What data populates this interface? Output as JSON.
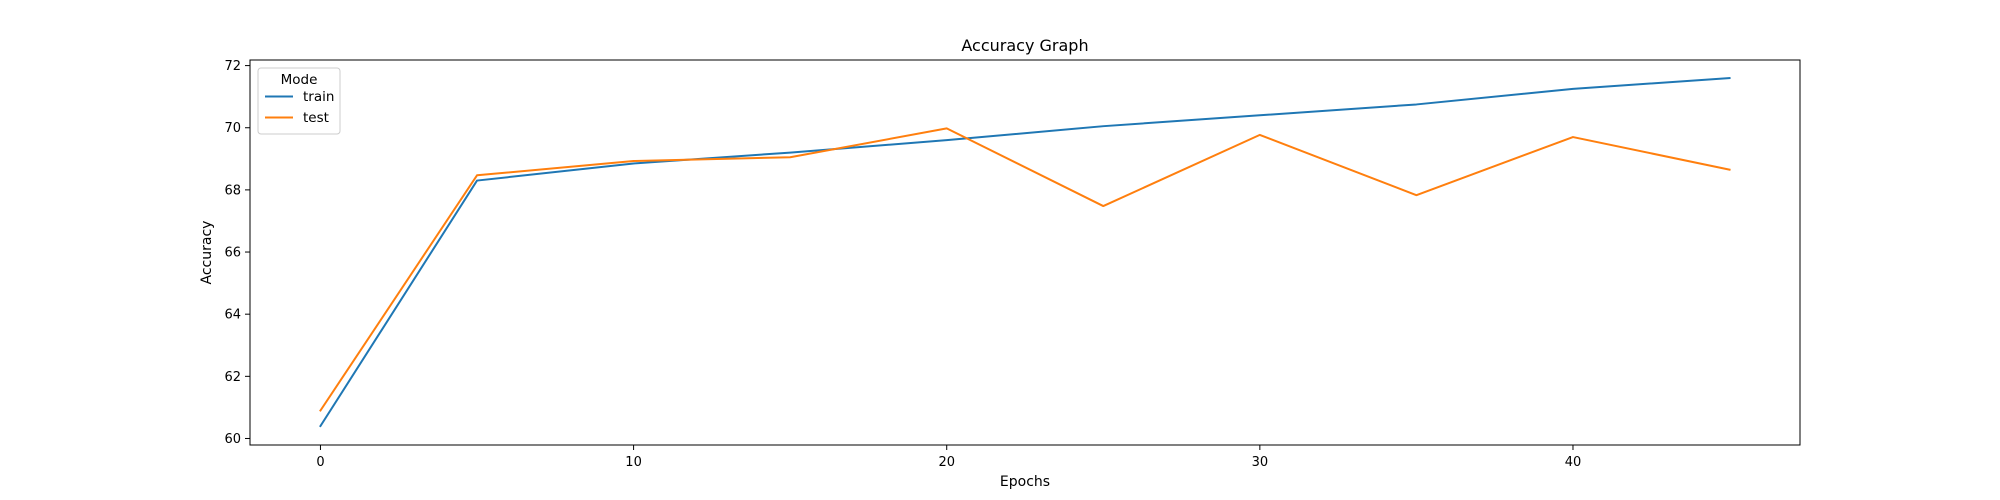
{
  "chart_data": {
    "type": "line",
    "title": "Accuracy Graph",
    "xlabel": "Epochs",
    "ylabel": "Accuracy",
    "xlim": [
      -2.25,
      47.25
    ],
    "ylim": [
      59.79,
      72.18
    ],
    "x_ticks": [
      0,
      10,
      20,
      30,
      40
    ],
    "y_ticks": [
      60,
      62,
      64,
      66,
      68,
      70,
      72
    ],
    "grid": false,
    "legend": {
      "title": "Mode",
      "placement": "top-left"
    },
    "x": [
      0,
      5,
      10,
      15,
      20,
      25,
      30,
      35,
      40,
      45
    ],
    "series": [
      {
        "name": "train",
        "color": "#1f77b4",
        "values": [
          60.4,
          68.3,
          68.85,
          69.2,
          69.6,
          70.05,
          70.4,
          70.75,
          71.25,
          71.6
        ]
      },
      {
        "name": "test",
        "color": "#ff7f0e",
        "values": [
          60.9,
          68.47,
          68.93,
          69.05,
          69.98,
          67.48,
          69.77,
          67.83,
          69.7,
          68.65
        ]
      }
    ]
  }
}
